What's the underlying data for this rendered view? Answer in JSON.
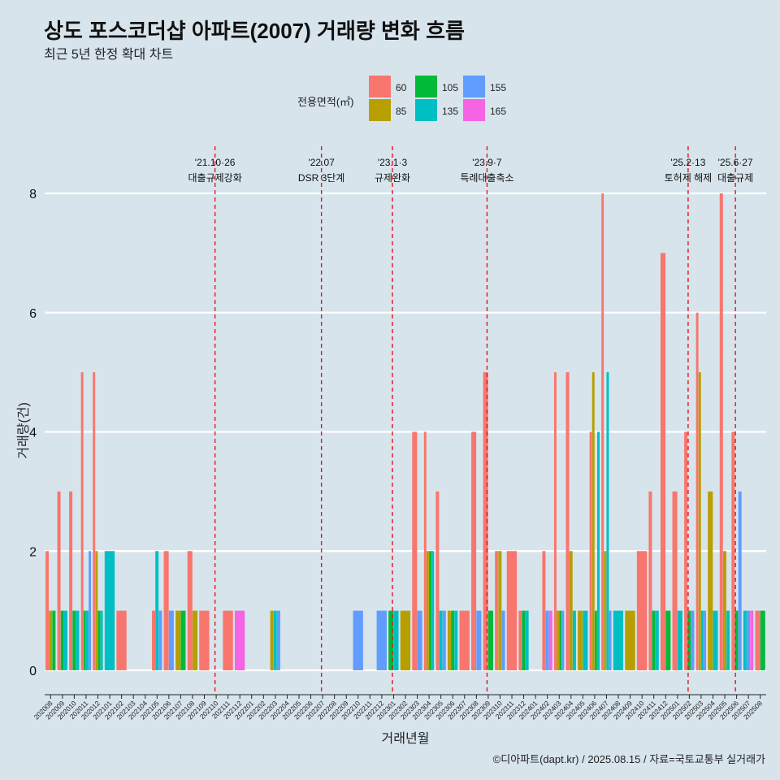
{
  "title": "상도 포스코더샵 아파트(2007) 거래량 변화 흐름",
  "subtitle": "최근 5년 한정 확대 차트",
  "credit": "©디아파트(dapt.kr) / 2025.08.15 / 자료=국토교통부 실거래가",
  "legend": {
    "title": "전용면적(㎡)",
    "items": [
      {
        "label": "60",
        "color": "#f8766d"
      },
      {
        "label": "85",
        "color": "#b79f00"
      },
      {
        "label": "105",
        "color": "#00ba38"
      },
      {
        "label": "135",
        "color": "#00bfc4"
      },
      {
        "label": "155",
        "color": "#619cff"
      },
      {
        "label": "165",
        "color": "#f564e3"
      }
    ]
  },
  "chart_data": {
    "type": "bar",
    "title": "상도 포스코더샵 아파트(2007) 거래량 변화 흐름",
    "xlabel": "거래년월",
    "ylabel": "거래량(건)",
    "ylim": [
      0,
      8
    ],
    "yticks": [
      0,
      2,
      4,
      6,
      8
    ],
    "categories": [
      "202008",
      "202009",
      "202010",
      "202011",
      "202012",
      "202101",
      "202102",
      "202103",
      "202104",
      "202105",
      "202106",
      "202107",
      "202108",
      "202109",
      "202110",
      "202111",
      "202112",
      "202201",
      "202202",
      "202203",
      "202204",
      "202205",
      "202206",
      "202207",
      "202208",
      "202209",
      "202210",
      "202211",
      "202212",
      "202301",
      "202302",
      "202303",
      "202304",
      "202305",
      "202306",
      "202307",
      "202308",
      "202309",
      "202310",
      "202311",
      "202312",
      "202401",
      "202402",
      "202403",
      "202404",
      "202405",
      "202406",
      "202407",
      "202408",
      "202409",
      "202410",
      "202411",
      "202412",
      "202501",
      "202502",
      "202503",
      "202504",
      "202505",
      "202506",
      "202507",
      "202508"
    ],
    "series": [
      {
        "name": "60",
        "values": [
          2,
          3,
          3,
          5,
          5,
          0,
          1,
          0,
          0,
          1,
          2,
          0,
          2,
          1,
          0,
          1,
          0,
          0,
          0,
          0,
          0,
          0,
          0,
          0,
          0,
          0,
          0,
          0,
          0,
          0,
          0,
          4,
          4,
          3,
          0,
          1,
          4,
          5,
          2,
          2,
          1,
          0,
          2,
          5,
          5,
          0,
          4,
          8,
          0,
          0,
          2,
          3,
          7,
          3,
          4,
          6,
          0,
          8,
          4,
          0,
          1
        ]
      },
      {
        "name": "85",
        "values": [
          1,
          0,
          0,
          0,
          2,
          0,
          0,
          0,
          0,
          0,
          0,
          1,
          1,
          0,
          0,
          0,
          0,
          0,
          0,
          1,
          0,
          0,
          0,
          0,
          0,
          0,
          0,
          0,
          0,
          0,
          1,
          0,
          2,
          0,
          1,
          0,
          0,
          0,
          2,
          0,
          0,
          0,
          0,
          1,
          2,
          1,
          5,
          2,
          0,
          1,
          0,
          0,
          0,
          0,
          0,
          5,
          3,
          2,
          0,
          0,
          0
        ]
      },
      {
        "name": "105",
        "values": [
          1,
          1,
          1,
          1,
          1,
          0,
          0,
          0,
          0,
          0,
          0,
          1,
          0,
          0,
          0,
          0,
          0,
          0,
          0,
          0,
          0,
          0,
          0,
          0,
          0,
          0,
          0,
          0,
          0,
          1,
          0,
          0,
          2,
          0,
          1,
          0,
          0,
          1,
          0,
          0,
          1,
          0,
          0,
          1,
          0,
          0,
          1,
          0,
          0,
          0,
          0,
          1,
          1,
          0,
          1,
          0,
          0,
          0,
          1,
          0,
          1
        ]
      },
      {
        "name": "135",
        "values": [
          0,
          1,
          1,
          1,
          1,
          2,
          0,
          0,
          0,
          2,
          0,
          0,
          0,
          0,
          0,
          0,
          0,
          0,
          0,
          1,
          0,
          0,
          0,
          0,
          0,
          0,
          0,
          0,
          0,
          1,
          0,
          0,
          2,
          1,
          1,
          0,
          0,
          0,
          0,
          0,
          1,
          0,
          0,
          0,
          1,
          1,
          4,
          5,
          1,
          0,
          0,
          1,
          0,
          1,
          0,
          1,
          1,
          1,
          0,
          1,
          0
        ]
      },
      {
        "name": "155",
        "values": [
          0,
          0,
          0,
          2,
          0,
          0,
          0,
          0,
          0,
          1,
          1,
          0,
          0,
          0,
          0,
          0,
          0,
          0,
          0,
          1,
          0,
          0,
          0,
          0,
          0,
          0,
          1,
          0,
          1,
          0,
          0,
          1,
          0,
          1,
          0,
          0,
          1,
          0,
          1,
          0,
          0,
          0,
          1,
          1,
          0,
          0,
          0,
          1,
          0,
          0,
          0,
          0,
          0,
          0,
          1,
          1,
          0,
          0,
          3,
          1,
          0
        ]
      },
      {
        "name": "165",
        "values": [
          0,
          0,
          0,
          0,
          0,
          0,
          0,
          0,
          0,
          0,
          0,
          0,
          0,
          0,
          0,
          0,
          1,
          0,
          0,
          0,
          0,
          0,
          0,
          0,
          0,
          0,
          0,
          0,
          0,
          0,
          0,
          0,
          0,
          0,
          0,
          0,
          0,
          0,
          0,
          0,
          0,
          0,
          1,
          0,
          0,
          0,
          0,
          0,
          0,
          0,
          0,
          0,
          0,
          0,
          0,
          0,
          0,
          0,
          0,
          1,
          0
        ]
      }
    ],
    "annotations": [
      {
        "date": "'21.10·26",
        "label": "대출규제강화",
        "x": 14.4
      },
      {
        "date": "'22.07",
        "label": "DSR 3단계",
        "x": 23.4
      },
      {
        "date": "'23.1·3",
        "label": "규제완화",
        "x": 29.4
      },
      {
        "date": "'23.9·7",
        "label": "특례대출축소",
        "x": 37.4
      },
      {
        "date": "'25.2·13",
        "label": "토허제 해제",
        "x": 54.4
      },
      {
        "date": "'25.6·27",
        "label": "대출규제",
        "x": 58.4
      }
    ]
  }
}
